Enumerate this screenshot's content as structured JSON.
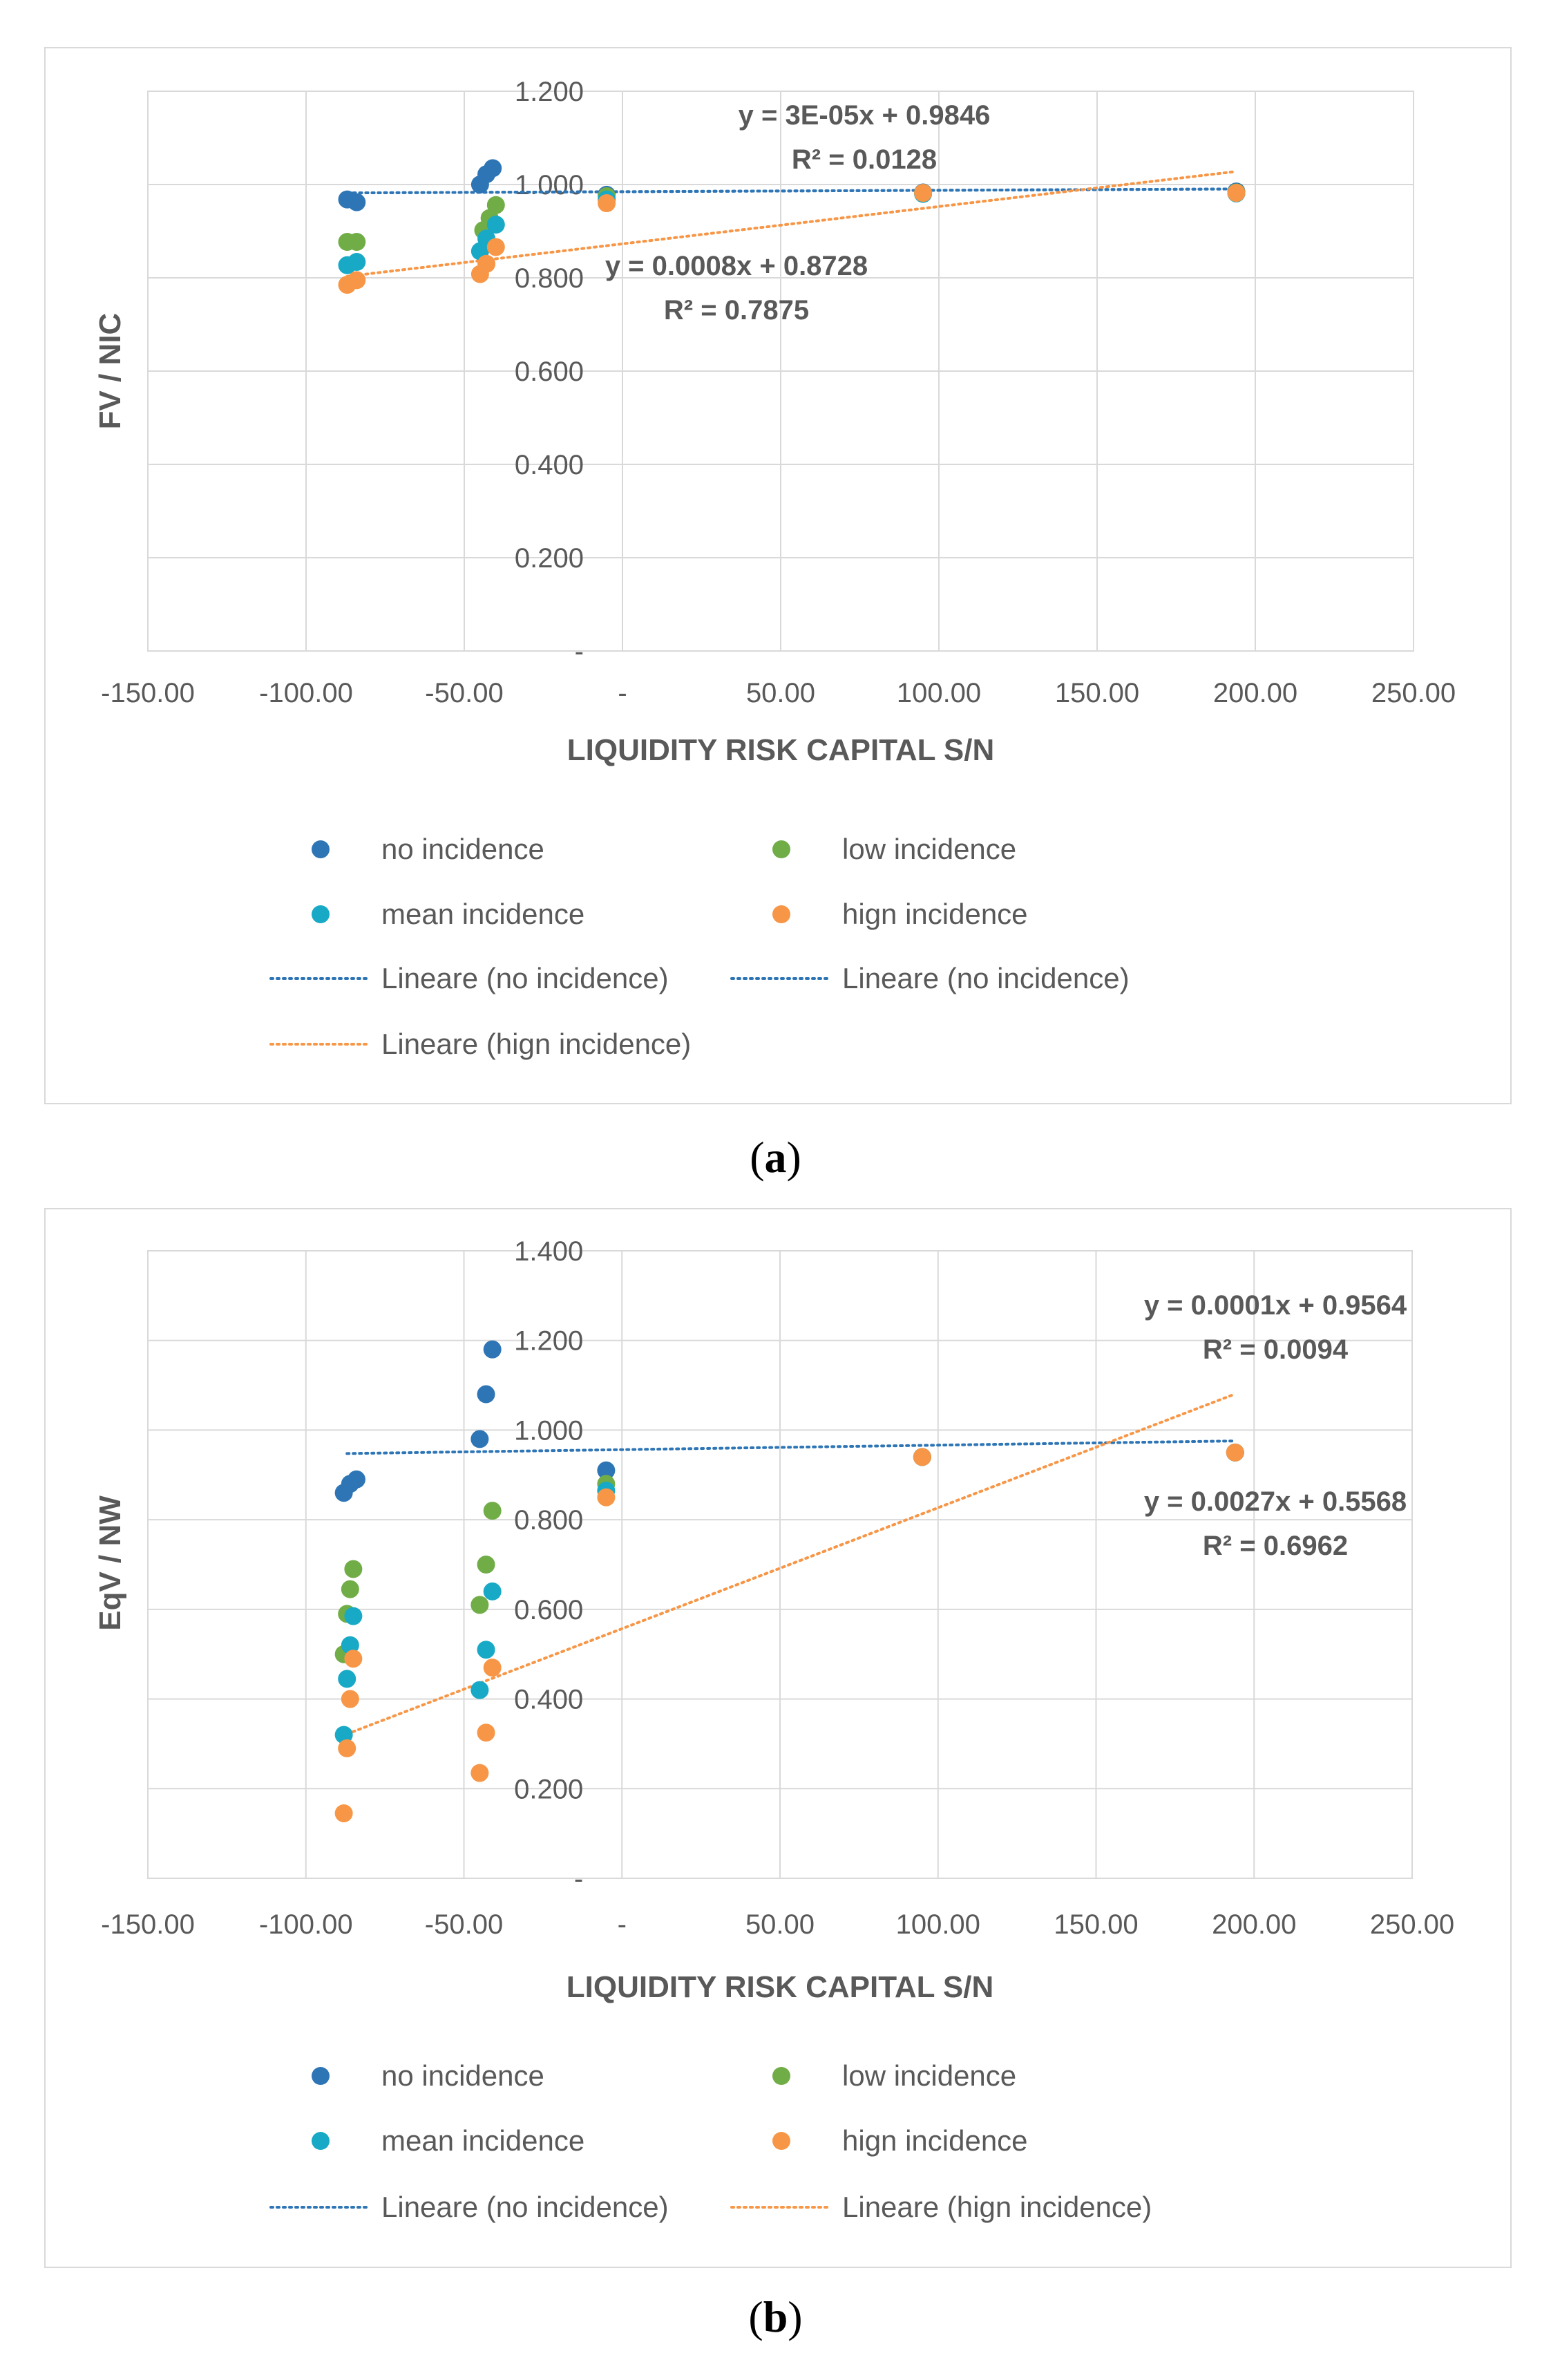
{
  "chart_data": [
    {
      "type": "scatter",
      "panel": "a",
      "caption": "a",
      "xlabel": "LIQUIDITY RISK CAPITAL S/N",
      "ylabel": "FV / NIC",
      "xlim": [
        -150,
        250
      ],
      "ylim": [
        0,
        1.2
      ],
      "x_ticks": [
        -150,
        -100,
        -50,
        0,
        50,
        100,
        150,
        200,
        250
      ],
      "x_tick_labels": [
        "-150.00",
        "-100.00",
        "-50.00",
        "-",
        "50.00",
        "100.00",
        "150.00",
        "200.00",
        "250.00"
      ],
      "y_ticks": [
        0,
        0.2,
        0.4,
        0.6,
        0.8,
        1.0,
        1.2
      ],
      "y_tick_labels": [
        "-",
        "0.200",
        "0.400",
        "0.600",
        "0.800",
        "1.000",
        "1.200"
      ],
      "grid": true,
      "series": [
        {
          "name": "no incidence",
          "color": "#2e75b6",
          "points": [
            [
              -87,
              0.968
            ],
            [
              -84,
              0.962
            ],
            [
              -45,
              1.0
            ],
            [
              -43,
              1.022
            ],
            [
              -41,
              1.035
            ],
            [
              -5,
              0.978
            ],
            [
              95,
              0.983
            ],
            [
              194,
              0.985
            ]
          ]
        },
        {
          "name": "low incidence",
          "color": "#70ad47",
          "points": [
            [
              -87,
              0.877
            ],
            [
              -84,
              0.877
            ],
            [
              -44,
              0.902
            ],
            [
              -42,
              0.928
            ],
            [
              -40,
              0.956
            ],
            [
              -5,
              0.975
            ],
            [
              95,
              0.982
            ],
            [
              194,
              0.983
            ]
          ]
        },
        {
          "name": "mean incidence",
          "color": "#17a9c5",
          "points": [
            [
              -87,
              0.827
            ],
            [
              -84,
              0.834
            ],
            [
              -45,
              0.857
            ],
            [
              -43,
              0.884
            ],
            [
              -40,
              0.914
            ],
            [
              -5,
              0.968
            ],
            [
              95,
              0.98
            ],
            [
              194,
              0.981
            ]
          ]
        },
        {
          "name": "hign incidence",
          "color": "#f79646",
          "points": [
            [
              -87,
              0.785
            ],
            [
              -84,
              0.795
            ],
            [
              -45,
              0.808
            ],
            [
              -43,
              0.83
            ],
            [
              -40,
              0.866
            ],
            [
              -5,
              0.96
            ],
            [
              95,
              0.982
            ],
            [
              194,
              0.982
            ]
          ]
        }
      ],
      "trendlines": [
        {
          "name": "Lineare (no incidence)",
          "color": "#2e75b6",
          "x_range": [
            -87,
            194
          ],
          "slope": 3e-05,
          "intercept": 0.9846,
          "equation": "y = 3E-05x  + 0.9846",
          "r2": "R² = 0.0128"
        },
        {
          "name": "Lineare (no incidence)",
          "color": "#2e75b6",
          "x_range": [
            -87,
            194
          ],
          "slope": 3e-05,
          "intercept": 0.9846,
          "equation": "",
          "r2": ""
        },
        {
          "name": "Lineare (hign incidence)",
          "color": "#f79646",
          "x_range": [
            -87,
            194
          ],
          "slope": 0.0008,
          "intercept": 0.8728,
          "equation": "y = 0.0008x  + 0.8728",
          "r2": "R² = 0.7875"
        }
      ]
    },
    {
      "type": "scatter",
      "panel": "b",
      "caption": "b",
      "xlabel": "LIQUIDITY RISK CAPITAL S/N",
      "ylabel": "EqV / NW",
      "xlim": [
        -150,
        250
      ],
      "ylim": [
        0,
        1.4
      ],
      "x_ticks": [
        -150,
        -100,
        -50,
        0,
        50,
        100,
        150,
        200,
        250
      ],
      "x_tick_labels": [
        "-150.00",
        "-100.00",
        "-50.00",
        "-",
        "50.00",
        "100.00",
        "150.00",
        "200.00",
        "250.00"
      ],
      "y_ticks": [
        0,
        0.2,
        0.4,
        0.6,
        0.8,
        1.0,
        1.2,
        1.4
      ],
      "y_tick_labels": [
        "-",
        "0.200",
        "0.400",
        "0.600",
        "0.800",
        "1.000",
        "1.200",
        "1.400"
      ],
      "grid": true,
      "series": [
        {
          "name": "no incidence",
          "color": "#2e75b6",
          "points": [
            [
              -88,
              0.86
            ],
            [
              -86,
              0.88
            ],
            [
              -84,
              0.89
            ],
            [
              -45,
              0.98
            ],
            [
              -43,
              1.08
            ],
            [
              -41,
              1.18
            ],
            [
              -5,
              0.91
            ],
            [
              95,
              0.94
            ],
            [
              194,
              0.95
            ]
          ]
        },
        {
          "name": "low incidence",
          "color": "#70ad47",
          "points": [
            [
              -88,
              0.5
            ],
            [
              -87,
              0.59
            ],
            [
              -86,
              0.645
            ],
            [
              -85,
              0.69
            ],
            [
              -45,
              0.61
            ],
            [
              -43,
              0.7
            ],
            [
              -41,
              0.82
            ],
            [
              -5,
              0.88
            ],
            [
              95,
              0.94
            ],
            [
              194,
              0.95
            ]
          ]
        },
        {
          "name": "mean incidence",
          "color": "#17a9c5",
          "points": [
            [
              -88,
              0.32
            ],
            [
              -87,
              0.445
            ],
            [
              -86,
              0.52
            ],
            [
              -85,
              0.585
            ],
            [
              -45,
              0.42
            ],
            [
              -43,
              0.51
            ],
            [
              -41,
              0.64
            ],
            [
              -5,
              0.865
            ],
            [
              95,
              0.94
            ],
            [
              194,
              0.95
            ]
          ]
        },
        {
          "name": "hign incidence",
          "color": "#f79646",
          "points": [
            [
              -88,
              0.145
            ],
            [
              -87,
              0.29
            ],
            [
              -86,
              0.4
            ],
            [
              -85,
              0.49
            ],
            [
              -45,
              0.235
            ],
            [
              -43,
              0.325
            ],
            [
              -41,
              0.47
            ],
            [
              -5,
              0.85
            ],
            [
              95,
              0.94
            ],
            [
              194,
              0.95
            ]
          ]
        }
      ],
      "trendlines": [
        {
          "name": "Lineare (no incidence)",
          "color": "#2e75b6",
          "x_range": [
            -87,
            194
          ],
          "slope": 0.0001,
          "intercept": 0.9564,
          "equation": "y = 0.0001x  + 0.9564",
          "r2": "R² = 0.0094"
        },
        {
          "name": "Lineare (hign incidence)",
          "color": "#f79646",
          "x_range": [
            -87,
            194
          ],
          "slope": 0.0027,
          "intercept": 0.5568,
          "equation": "y = 0.0027x  + 0.5568",
          "r2": "R² = 0.6962"
        }
      ]
    }
  ]
}
